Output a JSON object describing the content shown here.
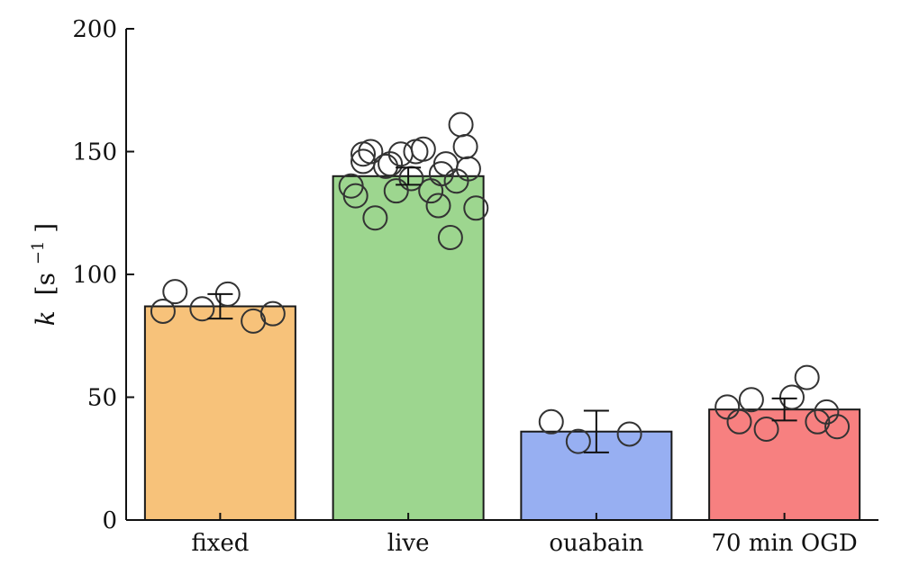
{
  "chart_data": {
    "type": "bar",
    "title": "",
    "xlabel": "",
    "ylabel": {
      "var": "k",
      "unit": "[s",
      "exp": "−1",
      "close": "]"
    },
    "ylim": [
      0,
      200
    ],
    "yticks": [
      0,
      50,
      100,
      150,
      200
    ],
    "grid": false,
    "categories": [
      "fixed",
      "live",
      "ouabain",
      "70 min OGD"
    ],
    "values": [
      87,
      140,
      36,
      45
    ],
    "errors": [
      5,
      3.5,
      8.5,
      4.5
    ],
    "colors": [
      "#f7c27a",
      "#9dd68f",
      "#97aff2",
      "#f78080"
    ],
    "points": [
      [
        93,
        86,
        81,
        92,
        84,
        85
      ],
      [
        149,
        145,
        141,
        150,
        161,
        136,
        134,
        123,
        115,
        149,
        143,
        146,
        151,
        138,
        144,
        128,
        132,
        139,
        145,
        150,
        152,
        134,
        127
      ],
      [
        40,
        32,
        35
      ],
      [
        40,
        37,
        40,
        50,
        38,
        46,
        58,
        49,
        44
      ]
    ]
  }
}
